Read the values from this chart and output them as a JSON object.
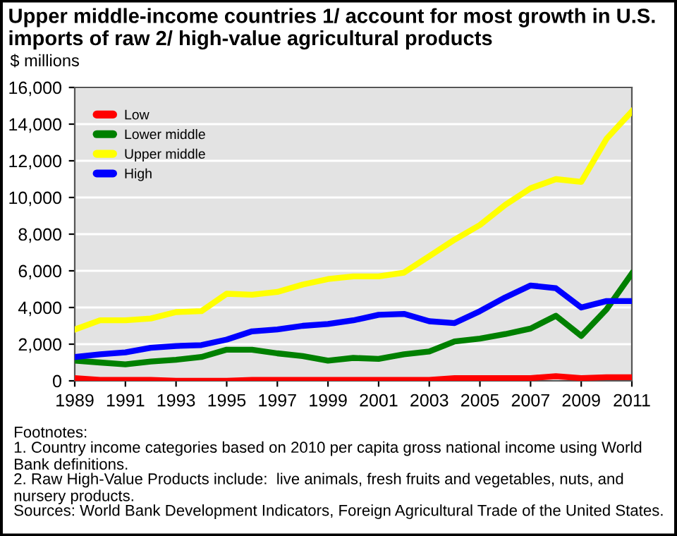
{
  "chart_data": {
    "type": "line",
    "title": "Upper middle-income countries 1/ account for most growth in U.S. imports of raw 2/ high-value agricultural products",
    "ylabel": "$ millions",
    "x": [
      1989,
      1990,
      1991,
      1992,
      1993,
      1994,
      1995,
      1996,
      1997,
      1998,
      1999,
      2000,
      2001,
      2002,
      2003,
      2004,
      2005,
      2006,
      2007,
      2008,
      2009,
      2010,
      2011
    ],
    "series": [
      {
        "name": "Low",
        "color": "#ff0000",
        "values": [
          150,
          50,
          50,
          50,
          0,
          0,
          0,
          50,
          50,
          50,
          50,
          50,
          50,
          50,
          50,
          150,
          150,
          150,
          150,
          250,
          150,
          200,
          200
        ]
      },
      {
        "name": "Lower middle",
        "color": "#008000",
        "values": [
          1100,
          1000,
          900,
          1050,
          1150,
          1300,
          1700,
          1700,
          1500,
          1350,
          1100,
          1250,
          1200,
          1450,
          1600,
          2150,
          2300,
          2550,
          2850,
          3550,
          2450,
          3900,
          5850
        ]
      },
      {
        "name": "Upper middle",
        "color": "#ffff00",
        "values": [
          2800,
          3300,
          3300,
          3400,
          3750,
          3800,
          4750,
          4700,
          4850,
          5250,
          5550,
          5700,
          5700,
          5900,
          6800,
          7700,
          8500,
          9600,
          10500,
          11000,
          10850,
          13200,
          14700
        ]
      },
      {
        "name": "High",
        "color": "#0000ff",
        "values": [
          1300,
          1450,
          1550,
          1800,
          1900,
          1950,
          2250,
          2700,
          2800,
          3000,
          3100,
          3300,
          3600,
          3650,
          3250,
          3150,
          3800,
          4550,
          5200,
          5050,
          4000,
          4350,
          4350
        ]
      }
    ],
    "xlim": [
      1989,
      2011
    ],
    "xticks": [
      1989,
      1991,
      1993,
      1995,
      1997,
      1999,
      2001,
      2003,
      2005,
      2007,
      2009,
      2011
    ],
    "ylim": [
      0,
      16000
    ],
    "yticks": [
      {
        "value": 0,
        "label": "0"
      },
      {
        "value": 2000,
        "label": "2,000"
      },
      {
        "value": 4000,
        "label": "4,000"
      },
      {
        "value": 6000,
        "label": "6,000"
      },
      {
        "value": 8000,
        "label": "8,000"
      },
      {
        "value": 10000,
        "label": "10,000"
      },
      {
        "value": 12000,
        "label": "12,000"
      },
      {
        "value": 14000,
        "label": "14,000"
      },
      {
        "value": 16000,
        "label": "16,000"
      }
    ],
    "grid": "y",
    "legend": "top left",
    "marker": "none",
    "line_style": "solid",
    "annotations": [
      "Footnotes:",
      "1. Country income categories based on 2010 per capita gross national income using World Bank definitions.",
      "2. Raw High-Value Products include:  live animals, fresh fruits and vegetables, nuts, and nursery products.",
      "Sources: World Bank Development Indicators, Foreign Agricultural Trade of the United States."
    ]
  }
}
